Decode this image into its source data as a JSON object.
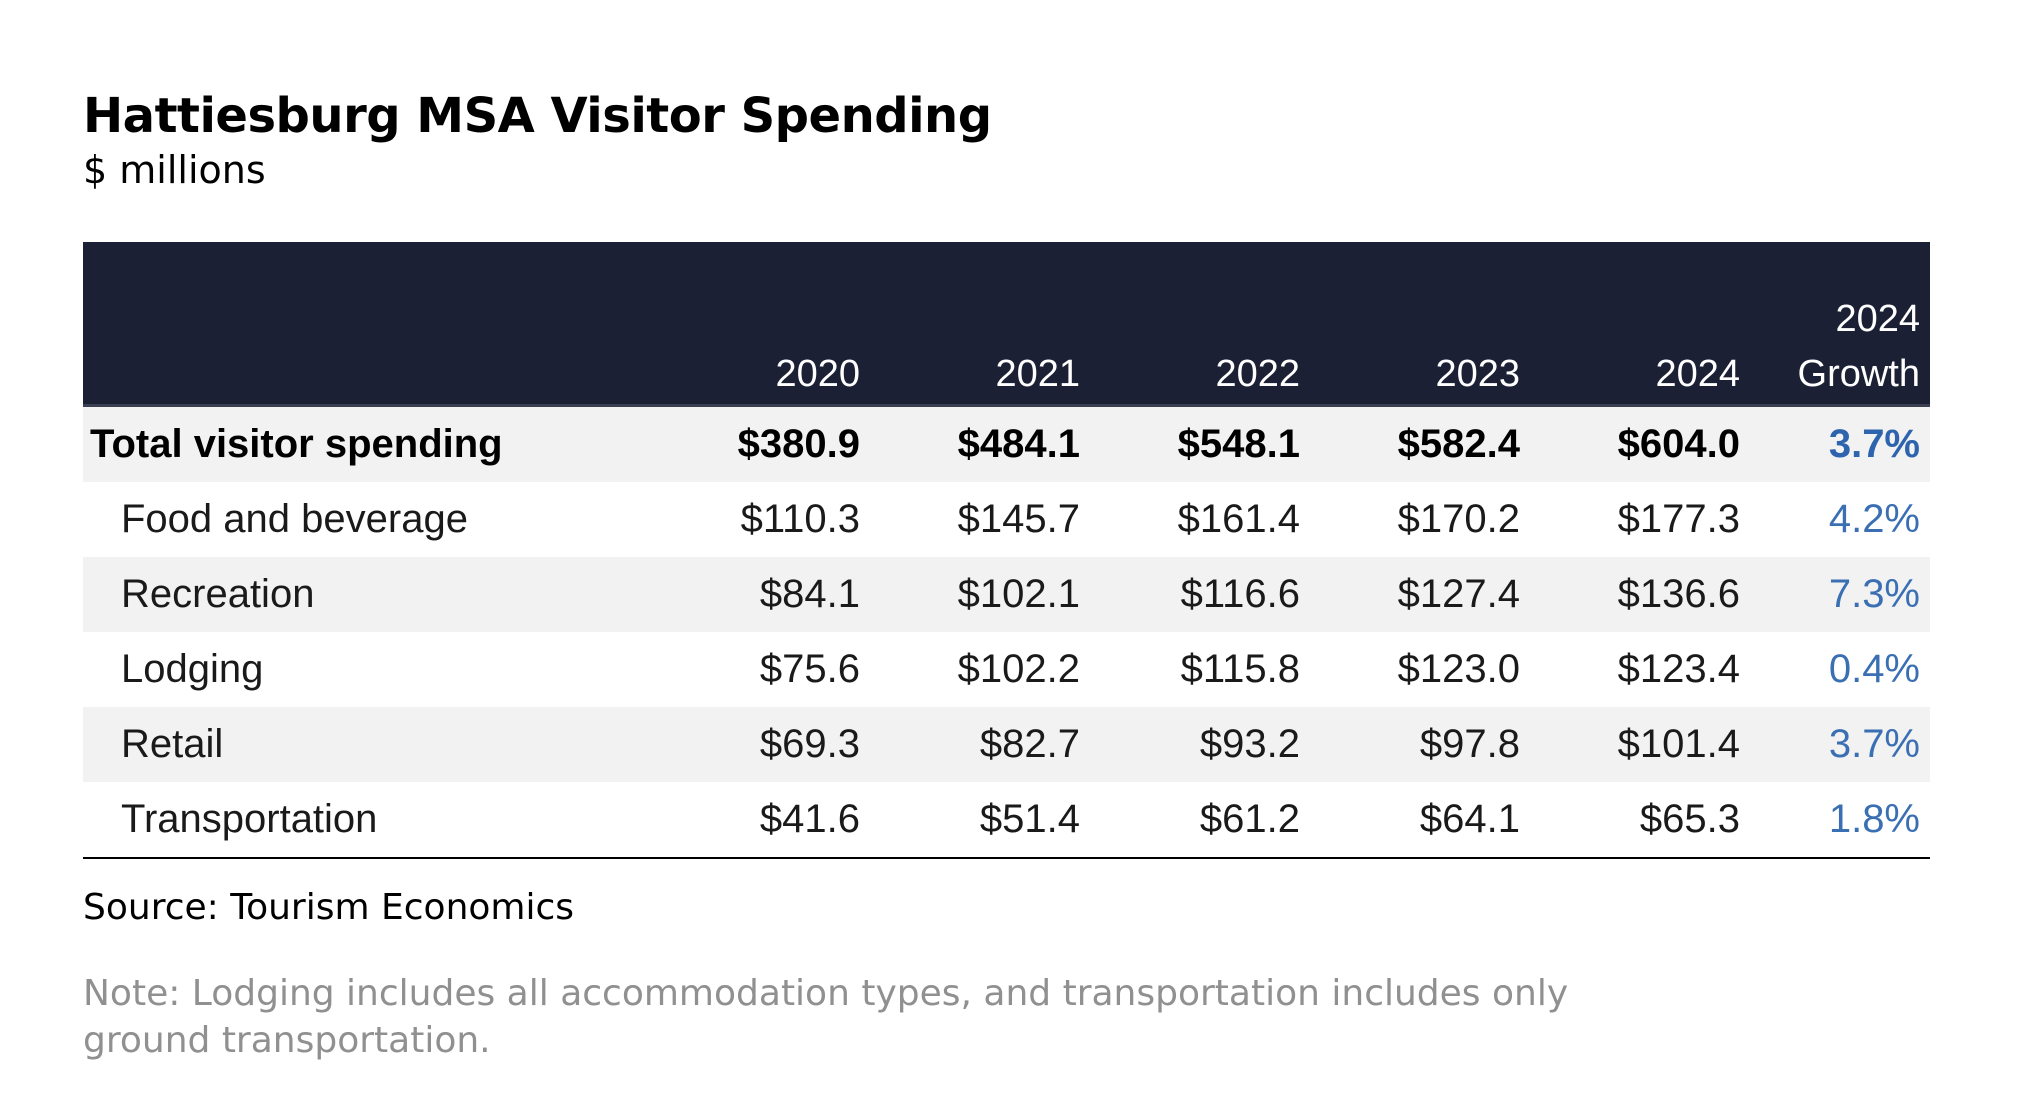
{
  "chart_data": {
    "type": "table",
    "title": "Hattiesburg MSA Visitor Spending",
    "subtitle": "$ millions",
    "columns": [
      "",
      "2020",
      "2021",
      "2022",
      "2023",
      "2024"
    ],
    "growth_header": [
      "2024",
      "Growth"
    ],
    "rows": [
      {
        "label": "Total visitor spending",
        "values": [
          "$380.9",
          "$484.1",
          "$548.1",
          "$582.4",
          "$604.0"
        ],
        "growth": "3.7%",
        "bold": true
      },
      {
        "label": "Food and beverage",
        "values": [
          "$110.3",
          "$145.7",
          "$161.4",
          "$170.2",
          "$177.3"
        ],
        "growth": "4.2%"
      },
      {
        "label": "Recreation",
        "values": [
          "$84.1",
          "$102.1",
          "$116.6",
          "$127.4",
          "$136.6"
        ],
        "growth": "7.3%"
      },
      {
        "label": "Lodging",
        "values": [
          "$75.6",
          "$102.2",
          "$115.8",
          "$123.0",
          "$123.4"
        ],
        "growth": "0.4%"
      },
      {
        "label": "Retail",
        "values": [
          "$69.3",
          "$82.7",
          "$93.2",
          "$97.8",
          "$101.4"
        ],
        "growth": "3.7%"
      },
      {
        "label": "Transportation",
        "values": [
          "$41.6",
          "$51.4",
          "$61.2",
          "$64.1",
          "$65.3"
        ],
        "growth": "1.8%"
      }
    ],
    "source": "Source: Tourism Economics",
    "note": "Note: Lodging includes all accommodation types, and transportation includes only ground transportation."
  },
  "colors": {
    "header_background": "#1b2034",
    "header_text": "#ffffff",
    "row_shade": "#f2f2f2",
    "growth_text": "#3a6fb3",
    "note_text": "#909090"
  }
}
